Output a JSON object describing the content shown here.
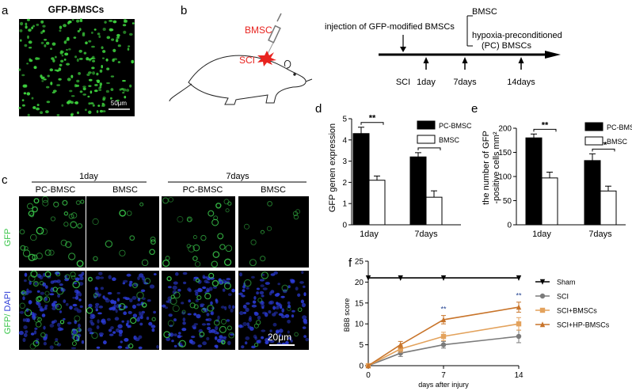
{
  "figure": {
    "panels": {
      "a": {
        "letter": "a",
        "title": "GFP-BMSCs",
        "scale_bar": "50μm",
        "fluorescence_color": "#3ed43e"
      },
      "b": {
        "letter": "b",
        "bmsc_label": "BMSC",
        "sci_label": "SCI",
        "injection_label": "injection of GFP-modified BMSCs",
        "group_1": "BMSC",
        "group_2_line1": "hypoxia-preconditioned",
        "group_2_line2": "(PC) BMSCs",
        "timepoints": [
          "SCI",
          "1day",
          "7days",
          "14days"
        ],
        "highlight_color": "#e8231f"
      },
      "c": {
        "letter": "c",
        "time_groups": [
          "1day",
          "7days"
        ],
        "columns": [
          "PC-BMSC",
          "BMSC",
          "PC-BMSC",
          "BMSC"
        ],
        "row_labels": {
          "gfp": "GFP",
          "merge_gfp": "GFP/",
          "merge_dapi": " DAPI"
        },
        "scale_bar": "20μm",
        "green": "#39c64a",
        "blue": "#2b3bd6"
      },
      "f": {
        "letter": "f"
      }
    }
  },
  "chart_data": [
    {
      "id": "d",
      "letter": "d",
      "type": "bar",
      "categories": [
        "1day",
        "7days"
      ],
      "series": [
        {
          "name": "PC-BMSC",
          "fill": "#000000",
          "values": [
            4.3,
            3.2
          ],
          "errors": [
            0.3,
            0.2
          ]
        },
        {
          "name": "BMSC",
          "fill": "#ffffff",
          "values": [
            2.1,
            1.3
          ],
          "errors": [
            0.2,
            0.3
          ]
        }
      ],
      "ylabel": "GFP genen expression",
      "ylim": [
        0,
        5
      ],
      "yticks": [
        0,
        1,
        2,
        3,
        4,
        5
      ],
      "significance": [
        "**",
        "**"
      ],
      "legend": "top-right"
    },
    {
      "id": "e",
      "letter": "e",
      "type": "bar",
      "categories": [
        "1day",
        "7days"
      ],
      "series": [
        {
          "name": "PC-BMSC",
          "fill": "#000000",
          "values": [
            180,
            133
          ],
          "errors": [
            8,
            14
          ]
        },
        {
          "name": "BMSC",
          "fill": "#ffffff",
          "values": [
            97,
            70
          ],
          "errors": [
            12,
            10
          ]
        }
      ],
      "ylabel_line1": "the number of GFP",
      "ylabel_line2": "-positive cells mm²",
      "ylim": [
        0,
        200
      ],
      "yticks": [
        0,
        50,
        100,
        150,
        200
      ],
      "significance": [
        "**",
        "**"
      ],
      "legend": "top-right"
    },
    {
      "id": "f",
      "type": "line",
      "x": [
        0,
        3,
        7,
        14
      ],
      "xticks": [
        0,
        7,
        14
      ],
      "xlim": [
        0,
        14
      ],
      "ylim": [
        0,
        25
      ],
      "yticks": [
        0,
        5,
        10,
        15,
        20,
        25
      ],
      "xlabel": "days after injury",
      "ylabel": "BBB score",
      "series": [
        {
          "name": "Sham",
          "color": "#000000",
          "marker": "triangle-down",
          "x": [
            0,
            3,
            7,
            14
          ],
          "values": [
            21,
            21,
            21,
            21
          ],
          "errors": [
            0,
            0,
            0,
            0
          ]
        },
        {
          "name": "SCI",
          "color": "#7b7b7b",
          "marker": "circle",
          "x": [
            0,
            3,
            7,
            14
          ],
          "values": [
            0,
            3,
            5,
            7
          ],
          "errors": [
            0,
            0.8,
            0.8,
            1.5
          ]
        },
        {
          "name": "SCI+BMSCs",
          "color": "#e3a25c",
          "marker": "square",
          "x": [
            0,
            3,
            7,
            14
          ],
          "values": [
            0,
            4,
            7,
            10
          ],
          "errors": [
            0,
            0.8,
            1.0,
            1.5
          ]
        },
        {
          "name": "SCI+HP-BMSCs",
          "color": "#c8742a",
          "marker": "triangle-up",
          "x": [
            0,
            3,
            7,
            14
          ],
          "values": [
            0,
            5,
            11,
            14
          ],
          "errors": [
            0,
            0.8,
            1.0,
            1.2
          ]
        }
      ],
      "annotations": [
        {
          "x": 7,
          "text": "**",
          "color": "#1f3f8f"
        },
        {
          "x": 14,
          "text": "**",
          "color": "#1f3f8f"
        }
      ],
      "legend": "right"
    }
  ]
}
